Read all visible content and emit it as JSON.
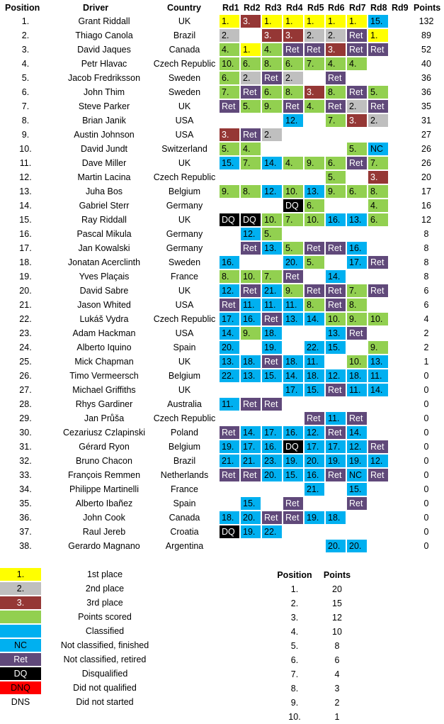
{
  "headers": {
    "position": "Position",
    "driver": "Driver",
    "country": "Country",
    "rounds": [
      "Rd1",
      "Rd2",
      "Rd3",
      "Rd4",
      "Rd5",
      "Rd6",
      "Rd7",
      "Rd8",
      "Rd9"
    ],
    "points": "Points"
  },
  "colors": {
    "y": "#ffff00",
    "s": "#bfbfbf",
    "b": "#953735",
    "g": "#92d050",
    "cl": "#00b0f0",
    "r": "#60497a",
    "nc": "#00b0f0",
    "dq": "#000000",
    "dnq": "#ff0000"
  },
  "rows": [
    {
      "pos": "1.",
      "driver": "Grant Riddall",
      "country": "UK",
      "points": "132",
      "rounds": [
        [
          "1.",
          "y"
        ],
        [
          "3.",
          "b"
        ],
        [
          "1.",
          "y"
        ],
        [
          "1.",
          "y"
        ],
        [
          "1.",
          "y"
        ],
        [
          "1.",
          "y"
        ],
        [
          "1.",
          "y"
        ],
        [
          "15.",
          "cl"
        ]
      ]
    },
    {
      "pos": "2.",
      "driver": "Thiago Canola",
      "country": "Brazil",
      "points": "89",
      "rounds": [
        [
          "2.",
          "s"
        ],
        null,
        [
          "3.",
          "b"
        ],
        [
          "3.",
          "b"
        ],
        [
          "2.",
          "s"
        ],
        [
          "2.",
          "s"
        ],
        [
          "Ret",
          "r"
        ],
        [
          "1.",
          "y"
        ]
      ]
    },
    {
      "pos": "3.",
      "driver": "David Jaques",
      "country": "Canada",
      "points": "52",
      "rounds": [
        [
          "4.",
          "g"
        ],
        [
          "1.",
          "y"
        ],
        [
          "4.",
          "g"
        ],
        [
          "Ret",
          "r"
        ],
        [
          "Ret",
          "r"
        ],
        [
          "3.",
          "b"
        ],
        [
          "Ret",
          "r"
        ],
        [
          "Ret",
          "r"
        ]
      ]
    },
    {
      "pos": "4.",
      "driver": "Petr Hlavac",
      "country": "Czech Republic",
      "points": "40",
      "rounds": [
        [
          "10.",
          "g"
        ],
        [
          "6.",
          "g"
        ],
        [
          "8.",
          "g"
        ],
        [
          "6.",
          "g"
        ],
        [
          "7.",
          "g"
        ],
        [
          "4.",
          "g"
        ],
        [
          "4.",
          "g"
        ],
        null
      ]
    },
    {
      "pos": "5.",
      "driver": "Jacob Fredriksson",
      "country": "Sweden",
      "points": "36",
      "rounds": [
        [
          "6.",
          "g"
        ],
        [
          "2.",
          "s"
        ],
        [
          "Ret",
          "r"
        ],
        [
          "2.",
          "s"
        ],
        null,
        [
          "Ret",
          "r"
        ],
        null,
        null
      ]
    },
    {
      "pos": "6.",
      "driver": "John Thim",
      "country": "Sweden",
      "points": "36",
      "rounds": [
        [
          "7.",
          "g"
        ],
        [
          "Ret",
          "r"
        ],
        [
          "6.",
          "g"
        ],
        [
          "8.",
          "g"
        ],
        [
          "3.",
          "b"
        ],
        [
          "8.",
          "g"
        ],
        [
          "Ret",
          "r"
        ],
        [
          "5.",
          "g"
        ]
      ]
    },
    {
      "pos": "7.",
      "driver": "Steve Parker",
      "country": "UK",
      "points": "35",
      "rounds": [
        [
          "Ret",
          "r"
        ],
        [
          "5.",
          "g"
        ],
        [
          "9.",
          "g"
        ],
        [
          "Ret",
          "r"
        ],
        [
          "4.",
          "g"
        ],
        [
          "Ret",
          "r"
        ],
        [
          "2.",
          "s"
        ],
        [
          "Ret",
          "r"
        ]
      ]
    },
    {
      "pos": "8.",
      "driver": "Brian Janik",
      "country": "USA",
      "points": "31",
      "rounds": [
        null,
        null,
        null,
        [
          "12.",
          "cl"
        ],
        null,
        [
          "7.",
          "g"
        ],
        [
          "3.",
          "b"
        ],
        [
          "2.",
          "s"
        ]
      ]
    },
    {
      "pos": "9.",
      "driver": "Austin Johnson",
      "country": "USA",
      "points": "27",
      "rounds": [
        [
          "3.",
          "b"
        ],
        [
          "Ret",
          "r"
        ],
        [
          "2.",
          "s"
        ],
        null,
        null,
        null,
        null,
        null
      ]
    },
    {
      "pos": "10.",
      "driver": "David Jundt",
      "country": "Switzerland",
      "points": "26",
      "rounds": [
        [
          "5.",
          "g"
        ],
        [
          "4.",
          "g"
        ],
        null,
        null,
        null,
        null,
        [
          "5.",
          "g"
        ],
        [
          "NC",
          "nc"
        ]
      ]
    },
    {
      "pos": "11.",
      "driver": "Dave Miller",
      "country": "UK",
      "points": "26",
      "rounds": [
        [
          "15.",
          "cl"
        ],
        [
          "7.",
          "g"
        ],
        [
          "14.",
          "cl"
        ],
        [
          "4.",
          "g"
        ],
        [
          "9.",
          "g"
        ],
        [
          "6.",
          "g"
        ],
        [
          "Ret",
          "r"
        ],
        [
          "7.",
          "g"
        ]
      ]
    },
    {
      "pos": "12.",
      "driver": "Martin Lacina",
      "country": "Czech Republic",
      "points": "20",
      "rounds": [
        null,
        null,
        null,
        null,
        null,
        [
          "5.",
          "g"
        ],
        null,
        [
          "3.",
          "b"
        ]
      ]
    },
    {
      "pos": "13.",
      "driver": "Juha Bos",
      "country": "Belgium",
      "points": "17",
      "rounds": [
        [
          "9.",
          "g"
        ],
        [
          "8.",
          "g"
        ],
        [
          "12.",
          "cl"
        ],
        [
          "10.",
          "g"
        ],
        [
          "13.",
          "cl"
        ],
        [
          "9.",
          "g"
        ],
        [
          "6.",
          "g"
        ],
        [
          "8.",
          "g"
        ]
      ]
    },
    {
      "pos": "14.",
      "driver": "Gabriel Sterr",
      "country": "Germany",
      "points": "16",
      "rounds": [
        null,
        null,
        null,
        [
          "DQ",
          "dq"
        ],
        [
          "6.",
          "g"
        ],
        null,
        null,
        [
          "4.",
          "g"
        ]
      ]
    },
    {
      "pos": "15.",
      "driver": "Ray Riddall",
      "country": "UK",
      "points": "12",
      "rounds": [
        [
          "DQ",
          "dq"
        ],
        [
          "DQ",
          "dq"
        ],
        [
          "10.",
          "g"
        ],
        [
          "7.",
          "g"
        ],
        [
          "10.",
          "g"
        ],
        [
          "16.",
          "cl"
        ],
        [
          "13.",
          "cl"
        ],
        [
          "6.",
          "g"
        ]
      ]
    },
    {
      "pos": "16.",
      "driver": "Pascal Mikula",
      "country": "Germany",
      "points": "8",
      "rounds": [
        null,
        [
          "12.",
          "cl"
        ],
        [
          "5.",
          "g"
        ],
        null,
        null,
        null,
        null,
        null
      ]
    },
    {
      "pos": "17.",
      "driver": "Jan Kowalski",
      "country": "Germany",
      "points": "8",
      "rounds": [
        null,
        [
          "Ret",
          "r"
        ],
        [
          "13.",
          "cl"
        ],
        [
          "5.",
          "g"
        ],
        [
          "Ret",
          "r"
        ],
        [
          "Ret",
          "r"
        ],
        [
          "16.",
          "cl"
        ],
        null
      ]
    },
    {
      "pos": "18.",
      "driver": "Jonatan Acerclinth",
      "country": "Sweden",
      "points": "8",
      "rounds": [
        [
          "16.",
          "cl"
        ],
        null,
        null,
        [
          "20.",
          "cl"
        ],
        [
          "5.",
          "g"
        ],
        null,
        [
          "17.",
          "cl"
        ],
        [
          "Ret",
          "r"
        ]
      ]
    },
    {
      "pos": "19.",
      "driver": "Yves Plaçais",
      "country": "France",
      "points": "8",
      "rounds": [
        [
          "8.",
          "g"
        ],
        [
          "10.",
          "g"
        ],
        [
          "7.",
          "g"
        ],
        [
          "Ret",
          "r"
        ],
        null,
        [
          "14.",
          "cl"
        ],
        null,
        null
      ]
    },
    {
      "pos": "20.",
      "driver": "David Sabre",
      "country": "UK",
      "points": "6",
      "rounds": [
        [
          "12.",
          "cl"
        ],
        [
          "Ret",
          "r"
        ],
        [
          "21.",
          "cl"
        ],
        [
          "9.",
          "g"
        ],
        [
          "Ret",
          "r"
        ],
        [
          "Ret",
          "r"
        ],
        [
          "7.",
          "g"
        ],
        [
          "Ret",
          "r"
        ]
      ]
    },
    {
      "pos": "21.",
      "driver": "Jason Whited",
      "country": "USA",
      "points": "6",
      "rounds": [
        [
          "Ret",
          "r"
        ],
        [
          "11.",
          "cl"
        ],
        [
          "11.",
          "cl"
        ],
        [
          "11.",
          "cl"
        ],
        [
          "8.",
          "g"
        ],
        [
          "Ret",
          "r"
        ],
        [
          "8.",
          "g"
        ],
        null
      ]
    },
    {
      "pos": "22.",
      "driver": "Lukáš Vydra",
      "country": "Czech Republic",
      "points": "4",
      "rounds": [
        [
          "17.",
          "cl"
        ],
        [
          "16.",
          "cl"
        ],
        [
          "Ret",
          "r"
        ],
        [
          "13.",
          "cl"
        ],
        [
          "14.",
          "cl"
        ],
        [
          "10.",
          "g"
        ],
        [
          "9.",
          "g"
        ],
        [
          "10.",
          "g"
        ]
      ]
    },
    {
      "pos": "23.",
      "driver": "Adam Hackman",
      "country": "USA",
      "points": "2",
      "rounds": [
        [
          "14.",
          "cl"
        ],
        [
          "9.",
          "g"
        ],
        [
          "18.",
          "cl"
        ],
        null,
        null,
        [
          "13.",
          "cl"
        ],
        [
          "Ret",
          "r"
        ],
        null
      ]
    },
    {
      "pos": "24.",
      "driver": "Alberto Iquino",
      "country": "Spain",
      "points": "2",
      "rounds": [
        [
          "20.",
          "cl"
        ],
        null,
        [
          "19.",
          "cl"
        ],
        null,
        [
          "22.",
          "cl"
        ],
        [
          "15.",
          "cl"
        ],
        null,
        [
          "9.",
          "g"
        ]
      ]
    },
    {
      "pos": "25.",
      "driver": "Mick Chapman",
      "country": "UK",
      "points": "1",
      "rounds": [
        [
          "13.",
          "cl"
        ],
        [
          "18.",
          "cl"
        ],
        [
          "Ret",
          "r"
        ],
        [
          "18.",
          "cl"
        ],
        [
          "11.",
          "cl"
        ],
        null,
        [
          "10.",
          "g"
        ],
        [
          "13.",
          "cl"
        ]
      ]
    },
    {
      "pos": "26.",
      "driver": "Timo Vermeersch",
      "country": "Belgium",
      "points": "0",
      "rounds": [
        [
          "22.",
          "cl"
        ],
        [
          "13.",
          "cl"
        ],
        [
          "15.",
          "cl"
        ],
        [
          "14.",
          "cl"
        ],
        [
          "18.",
          "cl"
        ],
        [
          "12.",
          "cl"
        ],
        [
          "18.",
          "cl"
        ],
        [
          "11.",
          "cl"
        ]
      ]
    },
    {
      "pos": "27.",
      "driver": "Michael Griffiths",
      "country": "UK",
      "points": "0",
      "rounds": [
        null,
        null,
        null,
        [
          "17.",
          "cl"
        ],
        [
          "15.",
          "cl"
        ],
        [
          "Ret",
          "r"
        ],
        [
          "11.",
          "cl"
        ],
        [
          "14.",
          "cl"
        ]
      ]
    },
    {
      "pos": "28.",
      "driver": "Rhys Gardiner",
      "country": "Australia",
      "points": "0",
      "rounds": [
        [
          "11.",
          "cl"
        ],
        [
          "Ret",
          "r"
        ],
        [
          "Ret",
          "r"
        ],
        null,
        null,
        null,
        null,
        null
      ]
    },
    {
      "pos": "29.",
      "driver": "Jan Průša",
      "country": "Czech Republic",
      "points": "0",
      "rounds": [
        null,
        null,
        null,
        null,
        [
          "Ret",
          "r"
        ],
        [
          "11.",
          "cl"
        ],
        [
          "Ret",
          "r"
        ],
        null
      ]
    },
    {
      "pos": "30.",
      "driver": "Cezariusz Czlapinski",
      "country": "Poland",
      "points": "0",
      "rounds": [
        [
          "Ret",
          "r"
        ],
        [
          "14.",
          "cl"
        ],
        [
          "17.",
          "cl"
        ],
        [
          "16.",
          "cl"
        ],
        [
          "12.",
          "cl"
        ],
        [
          "Ret",
          "r"
        ],
        [
          "14.",
          "cl"
        ],
        null
      ]
    },
    {
      "pos": "31.",
      "driver": "Gérard Ryon",
      "country": "Belgium",
      "points": "0",
      "rounds": [
        [
          "19.",
          "cl"
        ],
        [
          "17.",
          "cl"
        ],
        [
          "16.",
          "cl"
        ],
        [
          "DQ",
          "dq"
        ],
        [
          "17.",
          "cl"
        ],
        [
          "17.",
          "cl"
        ],
        [
          "12.",
          "cl"
        ],
        [
          "Ret",
          "r"
        ]
      ]
    },
    {
      "pos": "32.",
      "driver": "Bruno Chacon",
      "country": "Brazil",
      "points": "0",
      "rounds": [
        [
          "21.",
          "cl"
        ],
        [
          "21.",
          "cl"
        ],
        [
          "23.",
          "cl"
        ],
        [
          "19.",
          "cl"
        ],
        [
          "20.",
          "cl"
        ],
        [
          "19.",
          "cl"
        ],
        [
          "19.",
          "cl"
        ],
        [
          "12.",
          "cl"
        ]
      ]
    },
    {
      "pos": "33.",
      "driver": "François Remmen",
      "country": "Netherlands",
      "points": "0",
      "rounds": [
        [
          "Ret",
          "r"
        ],
        [
          "Ret",
          "r"
        ],
        [
          "20.",
          "cl"
        ],
        [
          "15.",
          "cl"
        ],
        [
          "16.",
          "cl"
        ],
        [
          "Ret",
          "r"
        ],
        [
          "NC",
          "nc"
        ],
        [
          "Ret",
          "r"
        ]
      ]
    },
    {
      "pos": "34.",
      "driver": "Philippe Martinelli",
      "country": "France",
      "points": "0",
      "rounds": [
        null,
        null,
        null,
        null,
        [
          "21.",
          "cl"
        ],
        null,
        [
          "15.",
          "cl"
        ],
        null
      ]
    },
    {
      "pos": "35.",
      "driver": "Alberto Ibañez",
      "country": "Spain",
      "points": "0",
      "rounds": [
        null,
        [
          "15.",
          "cl"
        ],
        null,
        [
          "Ret",
          "r"
        ],
        null,
        null,
        [
          "Ret",
          "r"
        ],
        null
      ]
    },
    {
      "pos": "36.",
      "driver": "John Cook",
      "country": "Canada",
      "points": "0",
      "rounds": [
        [
          "18.",
          "cl"
        ],
        [
          "20.",
          "cl"
        ],
        [
          "Ret",
          "r"
        ],
        [
          "Ret",
          "r"
        ],
        [
          "19.",
          "cl"
        ],
        [
          "18.",
          "cl"
        ],
        null,
        null
      ]
    },
    {
      "pos": "37.",
      "driver": "Raul Jereb",
      "country": "Croatia",
      "points": "0",
      "rounds": [
        [
          "DQ",
          "dq"
        ],
        [
          "19.",
          "cl"
        ],
        [
          "22.",
          "cl"
        ],
        null,
        null,
        null,
        null,
        null
      ]
    },
    {
      "pos": "38.",
      "driver": "Gerardo Magnano",
      "country": "Argentina",
      "points": "0",
      "rounds": [
        null,
        null,
        null,
        null,
        null,
        [
          "20.",
          "cl"
        ],
        [
          "20.",
          "cl"
        ],
        null
      ]
    }
  ],
  "legend": [
    {
      "swatch": "1.",
      "cls": "y",
      "label": "1st place"
    },
    {
      "swatch": "2.",
      "cls": "s",
      "label": "2nd place"
    },
    {
      "swatch": "3.",
      "cls": "b",
      "label": "3rd place"
    },
    {
      "swatch": "",
      "cls": "g",
      "label": "Points scored"
    },
    {
      "swatch": "",
      "cls": "cl",
      "label": "Classified"
    },
    {
      "swatch": "NC",
      "cls": "nc",
      "label": "Not classified, finished"
    },
    {
      "swatch": "Ret",
      "cls": "r",
      "label": "Not classified, retired"
    },
    {
      "swatch": "DQ",
      "cls": "dq",
      "label": "Disqualified"
    },
    {
      "swatch": "DNQ",
      "cls": "dnq",
      "label": "Did not qualified"
    },
    {
      "swatch": "DNS",
      "cls": "",
      "label": "Did not started"
    }
  ],
  "points_table": {
    "headers": {
      "position": "Position",
      "points": "Points"
    },
    "rows": [
      [
        "1.",
        "20"
      ],
      [
        "2.",
        "15"
      ],
      [
        "3.",
        "12"
      ],
      [
        "4.",
        "10"
      ],
      [
        "5.",
        "8"
      ],
      [
        "6.",
        "6"
      ],
      [
        "7.",
        "4"
      ],
      [
        "8.",
        "3"
      ],
      [
        "9.",
        "2"
      ],
      [
        "10.",
        "1"
      ]
    ]
  }
}
